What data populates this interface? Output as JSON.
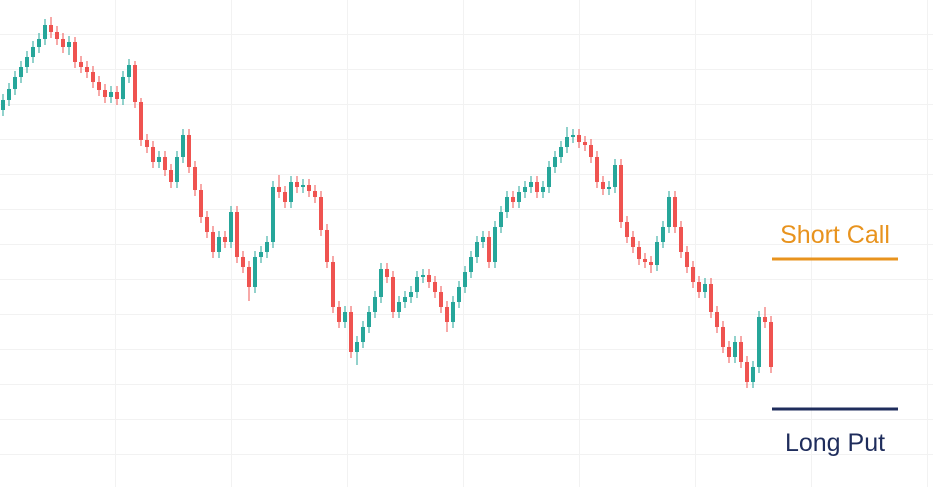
{
  "chart_data": {
    "type": "candlestick",
    "ylim": [
      0,
      487
    ],
    "up_color": "#26a69a",
    "down_color": "#ef5350",
    "open": [
      377,
      387,
      398,
      410,
      420,
      430,
      440,
      448,
      462,
      455,
      448,
      440,
      445,
      425,
      420,
      415,
      405,
      397,
      390,
      395,
      388,
      410,
      422,
      385,
      347,
      340,
      325,
      330,
      317,
      305,
      330,
      352,
      320,
      297,
      270,
      255,
      235,
      250,
      245,
      275,
      230,
      220,
      200,
      230,
      235,
      245,
      300,
      295,
      285,
      305,
      300,
      302,
      296,
      290,
      257,
      225,
      180,
      165,
      175,
      135,
      145,
      160,
      175,
      190,
      218,
      210,
      175,
      185,
      190,
      195,
      210,
      212,
      205,
      195,
      180,
      165,
      185,
      200,
      215,
      230,
      245,
      250,
      225,
      260,
      275,
      290,
      285,
      295,
      300,
      305,
      295,
      300,
      320,
      330,
      340,
      350,
      352,
      345,
      342,
      330,
      305,
      298,
      300,
      322,
      265,
      250,
      240,
      228,
      225,
      222,
      245,
      260,
      290,
      260,
      235,
      220,
      205,
      195,
      203,
      175,
      160,
      140,
      130,
      145,
      125,
      105,
      120,
      170,
      165
    ],
    "high": [
      393,
      404,
      416,
      426,
      436,
      446,
      454,
      468,
      470,
      461,
      454,
      451,
      450,
      431,
      426,
      421,
      411,
      403,
      401,
      401,
      416,
      428,
      426,
      389,
      353,
      346,
      336,
      336,
      323,
      336,
      358,
      358,
      326,
      303,
      276,
      261,
      256,
      256,
      281,
      281,
      236,
      226,
      236,
      241,
      251,
      306,
      312,
      301,
      311,
      311,
      308,
      308,
      302,
      296,
      263,
      231,
      186,
      181,
      181,
      151,
      166,
      181,
      196,
      224,
      224,
      216,
      191,
      196,
      201,
      216,
      218,
      218,
      211,
      201,
      186,
      191,
      206,
      221,
      236,
      251,
      256,
      256,
      266,
      281,
      296,
      296,
      301,
      306,
      311,
      311,
      306,
      326,
      336,
      346,
      360,
      358,
      358,
      351,
      348,
      336,
      311,
      306,
      328,
      328,
      271,
      256,
      246,
      234,
      231,
      251,
      266,
      296,
      296,
      266,
      241,
      226,
      211,
      209,
      209,
      181,
      166,
      146,
      151,
      151,
      131,
      126,
      176,
      180,
      171
    ],
    "low": [
      371,
      381,
      392,
      404,
      414,
      424,
      434,
      442,
      449,
      442,
      434,
      432,
      419,
      414,
      409,
      399,
      391,
      384,
      384,
      382,
      382,
      404,
      379,
      341,
      334,
      319,
      319,
      311,
      299,
      299,
      324,
      314,
      291,
      264,
      249,
      229,
      229,
      239,
      239,
      224,
      214,
      186,
      194,
      224,
      229,
      239,
      289,
      279,
      279,
      294,
      294,
      290,
      284,
      251,
      219,
      174,
      159,
      159,
      129,
      122,
      139,
      154,
      169,
      184,
      204,
      169,
      169,
      179,
      184,
      189,
      204,
      199,
      189,
      174,
      155,
      159,
      179,
      194,
      209,
      224,
      239,
      219,
      219,
      254,
      269,
      279,
      279,
      289,
      294,
      289,
      289,
      294,
      314,
      324,
      334,
      344,
      339,
      336,
      324,
      299,
      292,
      292,
      294,
      259,
      244,
      234,
      222,
      219,
      214,
      216,
      239,
      254,
      254,
      229,
      214,
      199,
      189,
      189,
      169,
      154,
      134,
      124,
      124,
      119,
      99,
      99,
      114,
      159,
      114
    ],
    "close": [
      387,
      398,
      410,
      420,
      430,
      440,
      448,
      462,
      455,
      448,
      440,
      445,
      425,
      420,
      415,
      405,
      397,
      390,
      395,
      388,
      410,
      422,
      385,
      347,
      340,
      325,
      330,
      317,
      305,
      330,
      352,
      320,
      297,
      270,
      255,
      235,
      250,
      245,
      275,
      230,
      220,
      200,
      230,
      235,
      245,
      300,
      295,
      285,
      305,
      300,
      302,
      296,
      290,
      257,
      225,
      180,
      165,
      175,
      135,
      145,
      160,
      175,
      190,
      218,
      210,
      175,
      185,
      190,
      195,
      210,
      212,
      205,
      195,
      180,
      165,
      185,
      200,
      215,
      230,
      245,
      250,
      225,
      260,
      275,
      290,
      285,
      295,
      300,
      305,
      295,
      300,
      320,
      330,
      340,
      350,
      352,
      345,
      342,
      330,
      305,
      298,
      300,
      322,
      265,
      250,
      240,
      228,
      225,
      222,
      245,
      260,
      290,
      260,
      235,
      220,
      205,
      195,
      203,
      175,
      160,
      140,
      130,
      145,
      125,
      105,
      120,
      170,
      165,
      120
    ],
    "levels": [
      {
        "label": "Short Call",
        "value": 228,
        "color": "#e8931e"
      },
      {
        "label": "Long Put",
        "value": 78,
        "color": "#1f2d5c"
      }
    ]
  }
}
